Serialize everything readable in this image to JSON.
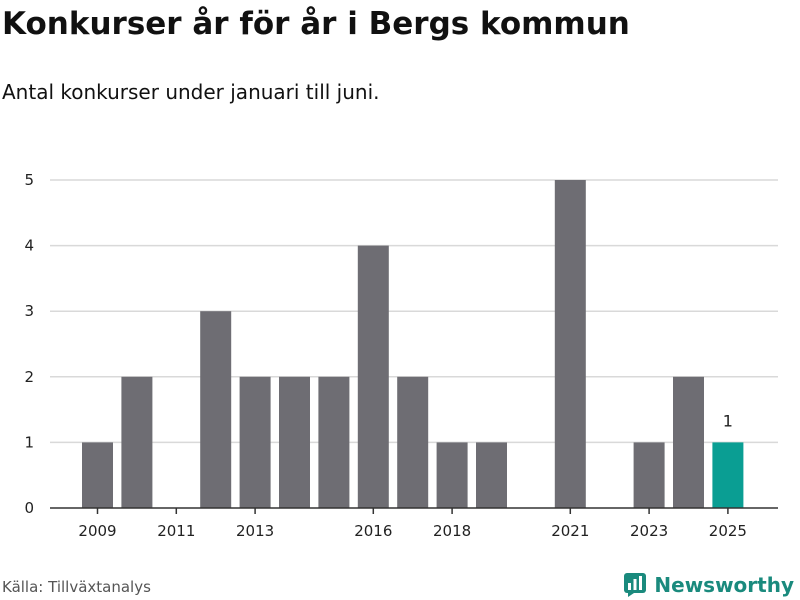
{
  "title": "Konkurser år för år i Bergs kommun",
  "subtitle": "Antal konkurser under januari till juni.",
  "source": "Källa: Tillväxtanalys",
  "brand": {
    "name": "Newsworthy",
    "icon": "newsworthy-logo-icon"
  },
  "colors": {
    "bar": "#6e6d73",
    "highlight": "#0a9e93",
    "grid": "#d9d9d9",
    "axis": "#333333"
  },
  "chart_data": {
    "type": "bar",
    "categories": [
      "2009",
      "2010",
      "2011",
      "2012",
      "2013",
      "2014",
      "2015",
      "2016",
      "2017",
      "2018",
      "2019",
      "2020",
      "2021",
      "2022",
      "2023",
      "2024",
      "2025"
    ],
    "values": [
      1,
      2,
      0,
      3,
      2,
      2,
      2,
      4,
      2,
      1,
      1,
      0,
      5,
      0,
      1,
      2,
      1
    ],
    "x_tick_labels": [
      "2009",
      "2011",
      "2013",
      "2016",
      "2018",
      "2021",
      "2023",
      "2025"
    ],
    "y_ticks": [
      0,
      1,
      2,
      3,
      4,
      5
    ],
    "ylim": [
      0,
      5
    ],
    "highlight_category": "2025",
    "data_labels": [
      {
        "category": "2025",
        "text": "1"
      }
    ],
    "grid": true,
    "legend": false
  }
}
